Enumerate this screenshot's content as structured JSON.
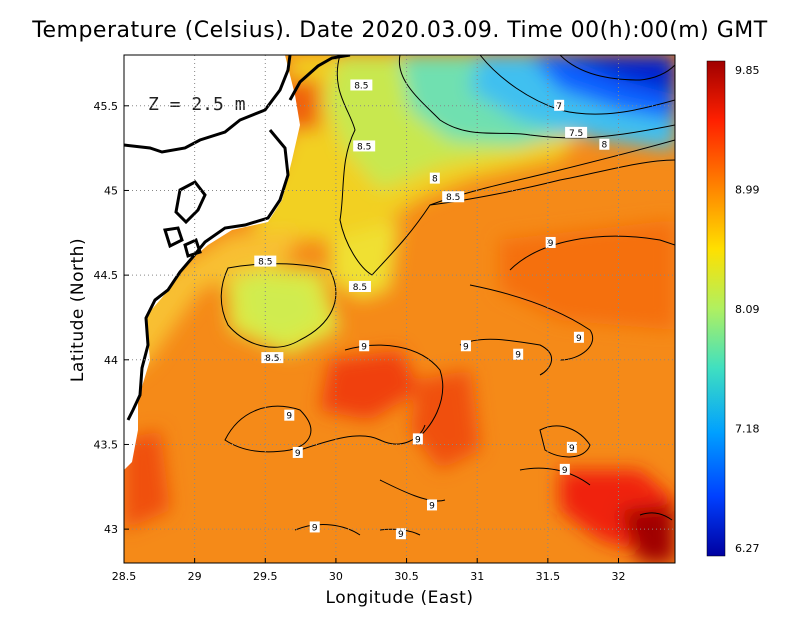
{
  "title": "Temperature (Celsius). Date 2020.03.09. Time 00(h):00(m)  GMT",
  "depth_label": "Z = 2.5 m",
  "axes": {
    "xlabel": "Longitude (East)",
    "ylabel": "Latitude (North)",
    "x_ticks": [
      "28.5",
      "29",
      "29.5",
      "30",
      "30.5",
      "31",
      "31.5",
      "32"
    ],
    "y_ticks": [
      "43",
      "43.5",
      "44",
      "44.5",
      "45",
      "45.5"
    ],
    "xlim": [
      28.5,
      32.4
    ],
    "ylim": [
      42.8,
      45.8
    ]
  },
  "colorbar": {
    "labels": [
      "9.85",
      "8.99",
      "8.09",
      "7.18",
      "6.27"
    ],
    "min": 6.27,
    "max": 9.85
  },
  "contour_labels": [
    {
      "text": "8.5",
      "lon": 30.18,
      "lat": 45.62
    },
    {
      "text": "8.5",
      "lon": 30.2,
      "lat": 45.26
    },
    {
      "text": "7",
      "lon": 31.58,
      "lat": 45.5
    },
    {
      "text": "7.5",
      "lon": 31.7,
      "lat": 45.34
    },
    {
      "text": "8",
      "lon": 31.9,
      "lat": 45.27
    },
    {
      "text": "8",
      "lon": 30.7,
      "lat": 45.07
    },
    {
      "text": "8.5",
      "lon": 30.83,
      "lat": 44.96
    },
    {
      "text": "8.5",
      "lon": 29.5,
      "lat": 44.58
    },
    {
      "text": "8.5",
      "lon": 30.17,
      "lat": 44.43
    },
    {
      "text": "8.5",
      "lon": 29.55,
      "lat": 44.01
    },
    {
      "text": "9",
      "lon": 31.52,
      "lat": 44.69
    },
    {
      "text": "9",
      "lon": 30.2,
      "lat": 44.08
    },
    {
      "text": "9",
      "lon": 30.92,
      "lat": 44.08
    },
    {
      "text": "9",
      "lon": 31.29,
      "lat": 44.03
    },
    {
      "text": "9",
      "lon": 31.72,
      "lat": 44.13
    },
    {
      "text": "9",
      "lon": 29.67,
      "lat": 43.67
    },
    {
      "text": "9",
      "lon": 29.73,
      "lat": 43.45
    },
    {
      "text": "9",
      "lon": 30.58,
      "lat": 43.53
    },
    {
      "text": "9",
      "lon": 31.67,
      "lat": 43.48
    },
    {
      "text": "9",
      "lon": 31.62,
      "lat": 43.35
    },
    {
      "text": "9",
      "lon": 30.68,
      "lat": 43.14
    },
    {
      "text": "9",
      "lon": 29.85,
      "lat": 43.01
    },
    {
      "text": "9",
      "lon": 30.46,
      "lat": 42.97
    }
  ]
}
